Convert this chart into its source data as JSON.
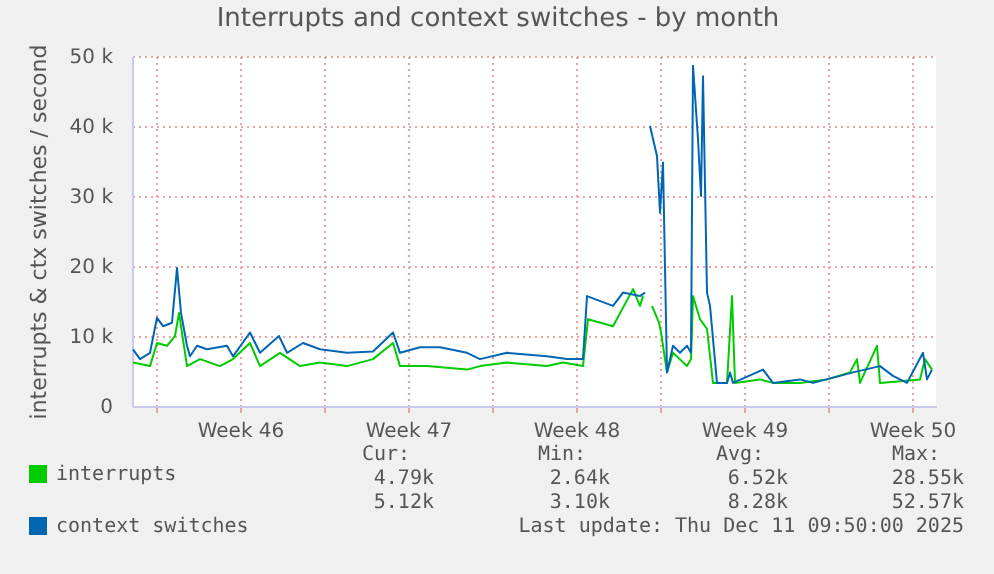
{
  "chart_data": {
    "type": "line",
    "title": "Interrupts and context switches - by month",
    "ylabel": "interrupts & ctx switches / second",
    "xlim": [
      "2025-11-08T00:00",
      "2025-12-11T12:00"
    ],
    "ylim": [
      0,
      50000
    ],
    "xticks": [
      {
        "value": "2025-11-09T00:00",
        "label": null
      },
      {
        "value": "2025-11-12T12:00",
        "label": "Week 46"
      },
      {
        "value": "2025-11-16T00:00",
        "label": null
      },
      {
        "value": "2025-11-19T12:00",
        "label": "Week 47"
      },
      {
        "value": "2025-11-23T00:00",
        "label": null
      },
      {
        "value": "2025-11-26T12:00",
        "label": "Week 48"
      },
      {
        "value": "2025-11-30T00:00",
        "label": null
      },
      {
        "value": "2025-12-03T12:00",
        "label": "Week 49"
      },
      {
        "value": "2025-12-07T00:00",
        "label": null
      },
      {
        "value": "2025-12-10T12:00",
        "label": "Week 50"
      }
    ],
    "yticks": [
      0,
      {
        "value": 10000,
        "label": "10 k"
      },
      {
        "value": 20000,
        "label": "20 k"
      },
      {
        "value": 30000,
        "label": "30 k"
      },
      {
        "value": 40000,
        "label": "40 k"
      },
      {
        "value": 50000,
        "label": "50 k"
      }
    ],
    "grid": true,
    "legend": "bottom",
    "series": [
      {
        "name": "interrupts",
        "color": "#00cc00",
        "x": [
          "2025-11-08T01:00",
          "2025-11-08T18:00",
          "2025-11-09T01:00",
          "2025-11-09T11:00",
          "2025-11-09T19:00",
          "2025-11-09T23:00",
          "2025-11-10T07:00",
          "2025-11-10T20:00",
          "2025-11-11T16:00",
          "2025-11-12T05:00",
          "2025-11-12T22:00",
          "2025-11-13T08:00",
          "2025-11-14T04:00",
          "2025-11-15T00:00",
          "2025-11-15T20:00",
          "2025-11-16T23:00",
          "2025-11-18T01:00",
          "2025-11-18T21:00",
          "2025-11-19T04:00",
          "2025-11-20T07:00",
          "2025-11-21T23:00",
          "2025-11-22T12:00",
          "2025-11-23T15:00",
          "2025-11-25T07:00",
          "2025-11-25T23:00",
          "2025-11-26T19:00",
          "2025-11-27T00:00",
          "2025-11-28T01:00",
          "2025-11-28T21:00",
          "2025-11-29T04:00",
          "2025-11-29T07:00",
          "2025-11-29T11:00",
          "2025-11-29T16:00",
          "2025-11-29T23:00",
          "2025-11-30T01:00",
          "2025-11-30T07:00",
          "2025-11-30T13:00",
          "2025-12-01T03:00",
          "2025-12-01T07:00",
          "2025-12-01T09:00",
          "2025-12-01T16:00",
          "2025-12-01T23:00",
          "2025-12-02T05:00",
          "2025-12-02T19:00",
          "2025-12-03T00:00",
          "2025-12-03T03:00",
          "2025-12-04T04:00",
          "2025-12-04T17:00",
          "2025-12-05T20:00",
          "2025-12-06T23:00",
          "2025-12-07T22:00",
          "2025-12-08T05:00",
          "2025-12-08T08:00",
          "2025-12-09T01:00",
          "2025-12-09T04:00",
          "2025-12-10T20:00",
          "2025-12-11T01:00",
          "2025-12-11T08:00"
        ],
        "values": [
          6200,
          5700,
          9000,
          8600,
          10000,
          13300,
          5700,
          6700,
          5700,
          6700,
          9000,
          5700,
          7600,
          5700,
          6200,
          5700,
          6700,
          9000,
          5700,
          5700,
          5200,
          5700,
          6200,
          5700,
          6200,
          5700,
          12400,
          11400,
          16700,
          14300,
          15700,
          null,
          14300,
          11900,
          10500,
          4800,
          7600,
          5700,
          6700,
          15700,
          12400,
          11000,
          3300,
          3300,
          15700,
          3300,
          3800,
          3300,
          3300,
          3800,
          4800,
          6700,
          3300,
          8600,
          3300,
          3800,
          6700,
          5200
        ]
      },
      {
        "name": "context switches",
        "color": "#0066b3",
        "x": [
          "2025-11-08T01:00",
          "2025-11-08T08:00",
          "2025-11-08T18:00",
          "2025-11-09T01:00",
          "2025-11-09T07:00",
          "2025-11-09T16:00",
          "2025-11-09T21:00",
          "2025-11-10T01:00",
          "2025-11-10T07:00",
          "2025-11-10T10:00",
          "2025-11-10T17:00",
          "2025-11-11T03:00",
          "2025-11-11T23:00",
          "2025-11-12T05:00",
          "2025-11-12T22:00",
          "2025-11-13T08:00",
          "2025-11-14T03:00",
          "2025-11-14T11:00",
          "2025-11-15T03:00",
          "2025-11-15T20:00",
          "2025-11-16T23:00",
          "2025-11-18T01:00",
          "2025-11-18T21:00",
          "2025-11-19T04:00",
          "2025-11-20T00:00",
          "2025-11-20T20:00",
          "2025-11-21T23:00",
          "2025-11-22T12:00",
          "2025-11-23T15:00",
          "2025-11-25T07:00",
          "2025-11-26T03:00",
          "2025-11-26T19:00",
          "2025-11-26T23:00",
          "2025-11-28T01:00",
          "2025-11-28T11:00",
          "2025-11-29T04:00",
          "2025-11-29T09:00",
          "2025-11-29T12:00",
          "2025-11-29T14:00",
          "2025-11-29T21:00",
          "2025-11-30T00:00",
          "2025-11-30T03:00",
          "2025-11-30T07:00",
          "2025-11-30T13:00",
          "2025-11-30T20:00",
          "2025-12-01T03:00",
          "2025-12-01T07:00",
          "2025-12-01T09:00",
          "2025-12-01T14:00",
          "2025-12-01T17:00",
          "2025-12-01T19:00",
          "2025-12-01T23:00",
          "2025-12-02T02:00",
          "2025-12-02T09:00",
          "2025-12-02T19:00",
          "2025-12-02T22:00",
          "2025-12-03T01:00",
          "2025-12-04T07:00",
          "2025-12-04T17:00",
          "2025-12-05T20:00",
          "2025-12-06T09:00",
          "2025-12-07T12:00",
          "2025-12-08T01:00",
          "2025-12-09T04:00",
          "2025-12-09T17:00",
          "2025-12-10T07:00",
          "2025-12-10T23:00",
          "2025-12-11T03:00",
          "2025-12-11T08:00"
        ],
        "values": [
          8100,
          6700,
          7600,
          12600,
          11400,
          11900,
          19700,
          13300,
          8600,
          7100,
          8600,
          8100,
          8600,
          7100,
          10500,
          7600,
          10000,
          7600,
          9000,
          8100,
          7600,
          7800,
          10500,
          7600,
          8400,
          8400,
          7600,
          6700,
          7600,
          7100,
          6700,
          6700,
          15700,
          14300,
          16200,
          15700,
          16200,
          null,
          40000,
          35700,
          27600,
          34800,
          4800,
          8600,
          7600,
          8600,
          7600,
          48600,
          38100,
          30000,
          47100,
          16200,
          14300,
          3300,
          3300,
          4800,
          3300,
          5200,
          3300,
          3800,
          3300,
          4300,
          4800,
          5700,
          4300,
          3300,
          7600,
          3800,
          5200
        ]
      }
    ],
    "annotations": [
      "Cur:",
      "Min:",
      "Avg:",
      "Max:",
      "4.79k",
      "2.64k",
      "6.52k",
      "28.55k",
      "5.12k",
      "3.10k",
      "8.28k",
      "52.57k",
      "Last update: Thu Dec 11 09:50:00 2025"
    ]
  }
}
